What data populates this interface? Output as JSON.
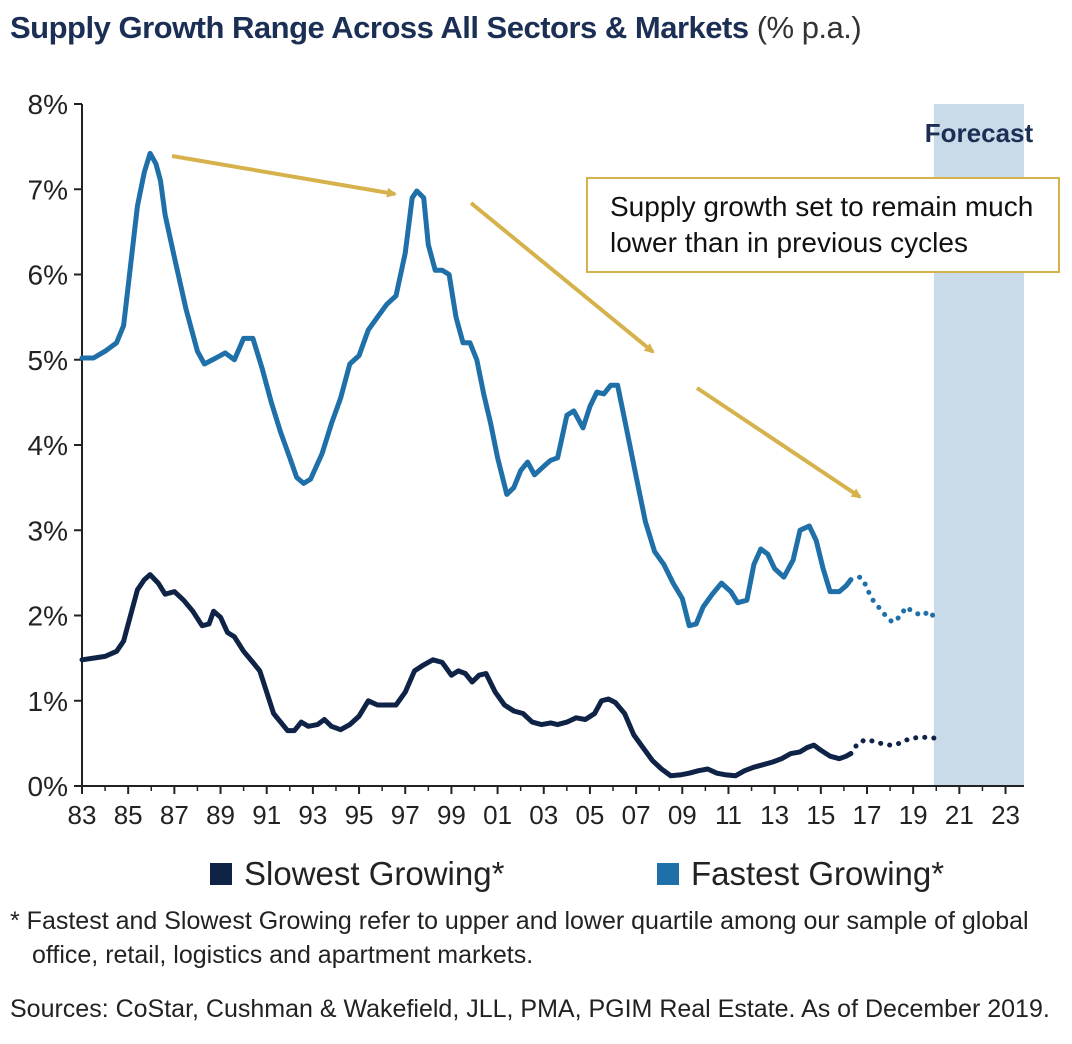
{
  "title": {
    "main": "Supply Growth Range Across All Sectors & Markets",
    "unit": "(% p.a.)"
  },
  "annotation": {
    "forecast_label": "Forecast",
    "callout_line1": "Supply growth set to remain much",
    "callout_line2": "lower than in previous cycles"
  },
  "legend": [
    {
      "label": "Slowest Growing*",
      "color": "#0f2347"
    },
    {
      "label": "Fastest Growing*",
      "color": "#1f6fa8"
    }
  ],
  "footnote": {
    "line1": "* Fastest and Slowest Growing refer to upper and lower quartile among our sample of global",
    "line2": "office, retail, logistics and apartment markets."
  },
  "source": "Sources: CoStar, Cushman & Wakefield, JLL, PMA, PGIM Real Estate. As of December 2019.",
  "colors": {
    "fastest": "#1f6fa8",
    "slowest": "#0f2347",
    "forecast_band": "#c9dbe8",
    "arrow": "#d6b24d",
    "axis": "#222222"
  },
  "chart_data": {
    "type": "line",
    "title": "Supply Growth Range Across All Sectors & Markets (% p.a.)",
    "xlabel": "",
    "ylabel": "",
    "xlim": [
      1983,
      2023.8
    ],
    "ylim": [
      0,
      8
    ],
    "y_ticks": [
      0,
      1,
      2,
      3,
      4,
      5,
      6,
      7,
      8
    ],
    "y_tick_labels": [
      "0%",
      "1%",
      "2%",
      "3%",
      "4%",
      "5%",
      "6%",
      "7%",
      "8%"
    ],
    "x_ticks": [
      1983,
      1985,
      1987,
      1989,
      1991,
      1993,
      1995,
      1997,
      1999,
      2001,
      2003,
      2005,
      2007,
      2009,
      2011,
      2013,
      2015,
      2017,
      2019,
      2021,
      2023
    ],
    "x_tick_labels": [
      "83",
      "85",
      "87",
      "89",
      "91",
      "93",
      "95",
      "97",
      "99",
      "01",
      "03",
      "05",
      "07",
      "09",
      "11",
      "13",
      "15",
      "17",
      "19",
      "21",
      "23"
    ],
    "forecast_range": [
      2019.9,
      2023.8
    ],
    "grid": false,
    "legend_position": "bottom",
    "series": [
      {
        "name": "Fastest Growing*",
        "color": "#1f6fa8",
        "points": [
          [
            1983,
            5.02
          ],
          [
            1983.5,
            5.02
          ],
          [
            1984,
            5.1
          ],
          [
            1984.5,
            5.2
          ],
          [
            1984.8,
            5.4
          ],
          [
            1985.1,
            6.1
          ],
          [
            1985.4,
            6.8
          ],
          [
            1985.7,
            7.2
          ],
          [
            1985.95,
            7.42
          ],
          [
            1986.2,
            7.3
          ],
          [
            1986.4,
            7.1
          ],
          [
            1986.6,
            6.7
          ],
          [
            1987,
            6.2
          ],
          [
            1987.5,
            5.6
          ],
          [
            1988,
            5.1
          ],
          [
            1988.3,
            4.95
          ],
          [
            1988.8,
            5.02
          ],
          [
            1989.2,
            5.08
          ],
          [
            1989.6,
            5.0
          ],
          [
            1990.0,
            5.25
          ],
          [
            1990.4,
            5.25
          ],
          [
            1990.8,
            4.9
          ],
          [
            1991.2,
            4.5
          ],
          [
            1991.6,
            4.15
          ],
          [
            1992.0,
            3.85
          ],
          [
            1992.3,
            3.62
          ],
          [
            1992.6,
            3.55
          ],
          [
            1992.9,
            3.6
          ],
          [
            1993.4,
            3.9
          ],
          [
            1993.8,
            4.25
          ],
          [
            1994.2,
            4.55
          ],
          [
            1994.6,
            4.95
          ],
          [
            1995.0,
            5.05
          ],
          [
            1995.4,
            5.35
          ],
          [
            1995.8,
            5.5
          ],
          [
            1996.2,
            5.65
          ],
          [
            1996.6,
            5.75
          ],
          [
            1997.0,
            6.25
          ],
          [
            1997.3,
            6.9
          ],
          [
            1997.5,
            6.98
          ],
          [
            1997.8,
            6.9
          ],
          [
            1998.0,
            6.35
          ],
          [
            1998.3,
            6.05
          ],
          [
            1998.6,
            6.05
          ],
          [
            1998.9,
            6.0
          ],
          [
            1999.2,
            5.5
          ],
          [
            1999.5,
            5.2
          ],
          [
            1999.8,
            5.2
          ],
          [
            2000.1,
            5.0
          ],
          [
            2000.4,
            4.6
          ],
          [
            2000.7,
            4.25
          ],
          [
            2001.0,
            3.85
          ],
          [
            2001.4,
            3.42
          ],
          [
            2001.7,
            3.5
          ],
          [
            2002.0,
            3.7
          ],
          [
            2002.3,
            3.8
          ],
          [
            2002.6,
            3.65
          ],
          [
            2003.0,
            3.75
          ],
          [
            2003.3,
            3.82
          ],
          [
            2003.6,
            3.85
          ],
          [
            2004.0,
            4.35
          ],
          [
            2004.3,
            4.4
          ],
          [
            2004.7,
            4.2
          ],
          [
            2005.0,
            4.45
          ],
          [
            2005.3,
            4.62
          ],
          [
            2005.6,
            4.6
          ],
          [
            2005.9,
            4.7
          ],
          [
            2006.2,
            4.7
          ],
          [
            2006.5,
            4.3
          ],
          [
            2006.8,
            3.9
          ],
          [
            2007.1,
            3.5
          ],
          [
            2007.4,
            3.1
          ],
          [
            2007.8,
            2.75
          ],
          [
            2008.2,
            2.6
          ],
          [
            2008.6,
            2.38
          ],
          [
            2009.0,
            2.2
          ],
          [
            2009.3,
            1.88
          ],
          [
            2009.6,
            1.9
          ],
          [
            2009.9,
            2.1
          ],
          [
            2010.3,
            2.25
          ],
          [
            2010.7,
            2.38
          ],
          [
            2011.1,
            2.28
          ],
          [
            2011.4,
            2.15
          ],
          [
            2011.8,
            2.18
          ],
          [
            2012.1,
            2.6
          ],
          [
            2012.4,
            2.78
          ],
          [
            2012.7,
            2.72
          ],
          [
            2013.0,
            2.55
          ],
          [
            2013.4,
            2.45
          ],
          [
            2013.8,
            2.65
          ],
          [
            2014.1,
            3.0
          ],
          [
            2014.5,
            3.05
          ],
          [
            2014.8,
            2.88
          ],
          [
            2015.1,
            2.55
          ],
          [
            2015.4,
            2.28
          ],
          [
            2015.8,
            2.28
          ],
          [
            2016.1,
            2.35
          ],
          [
            2016.3,
            2.42
          ]
        ],
        "forecast_points": [
          [
            2016.3,
            2.42
          ],
          [
            2016.7,
            2.45
          ],
          [
            2016.9,
            2.38
          ],
          [
            2017.2,
            2.2
          ],
          [
            2017.5,
            2.1
          ],
          [
            2017.8,
            2.0
          ],
          [
            2018.1,
            1.92
          ],
          [
            2018.4,
            1.98
          ],
          [
            2018.7,
            2.1
          ],
          [
            2019.0,
            2.04
          ],
          [
            2019.4,
            2.0
          ],
          [
            2019.7,
            2.05
          ],
          [
            2020.0,
            1.95
          ]
        ]
      },
      {
        "name": "Slowest Growing*",
        "color": "#0f2347",
        "points": [
          [
            1983,
            1.48
          ],
          [
            1983.5,
            1.5
          ],
          [
            1984,
            1.52
          ],
          [
            1984.5,
            1.58
          ],
          [
            1984.8,
            1.7
          ],
          [
            1985.1,
            2.0
          ],
          [
            1985.4,
            2.3
          ],
          [
            1985.7,
            2.42
          ],
          [
            1985.95,
            2.48
          ],
          [
            1986.3,
            2.38
          ],
          [
            1986.6,
            2.25
          ],
          [
            1987.0,
            2.28
          ],
          [
            1987.4,
            2.18
          ],
          [
            1987.8,
            2.05
          ],
          [
            1988.2,
            1.88
          ],
          [
            1988.5,
            1.9
          ],
          [
            1988.7,
            2.05
          ],
          [
            1989.0,
            1.98
          ],
          [
            1989.3,
            1.8
          ],
          [
            1989.6,
            1.75
          ],
          [
            1990.0,
            1.58
          ],
          [
            1990.4,
            1.45
          ],
          [
            1990.7,
            1.35
          ],
          [
            1991.0,
            1.1
          ],
          [
            1991.3,
            0.85
          ],
          [
            1991.6,
            0.75
          ],
          [
            1991.9,
            0.65
          ],
          [
            1992.2,
            0.65
          ],
          [
            1992.5,
            0.75
          ],
          [
            1992.8,
            0.7
          ],
          [
            1993.2,
            0.72
          ],
          [
            1993.5,
            0.78
          ],
          [
            1993.8,
            0.7
          ],
          [
            1994.2,
            0.66
          ],
          [
            1994.6,
            0.72
          ],
          [
            1995.0,
            0.82
          ],
          [
            1995.4,
            1.0
          ],
          [
            1995.8,
            0.95
          ],
          [
            1996.2,
            0.95
          ],
          [
            1996.6,
            0.95
          ],
          [
            1997.0,
            1.1
          ],
          [
            1997.4,
            1.35
          ],
          [
            1997.8,
            1.42
          ],
          [
            1998.2,
            1.48
          ],
          [
            1998.6,
            1.45
          ],
          [
            1999.0,
            1.3
          ],
          [
            1999.3,
            1.35
          ],
          [
            1999.6,
            1.32
          ],
          [
            1999.9,
            1.22
          ],
          [
            2000.2,
            1.3
          ],
          [
            2000.5,
            1.32
          ],
          [
            2000.9,
            1.1
          ],
          [
            2001.3,
            0.95
          ],
          [
            2001.7,
            0.88
          ],
          [
            2002.1,
            0.85
          ],
          [
            2002.5,
            0.75
          ],
          [
            2002.9,
            0.72
          ],
          [
            2003.3,
            0.74
          ],
          [
            2003.6,
            0.72
          ],
          [
            2004.0,
            0.75
          ],
          [
            2004.4,
            0.8
          ],
          [
            2004.8,
            0.78
          ],
          [
            2005.2,
            0.85
          ],
          [
            2005.5,
            1.0
          ],
          [
            2005.8,
            1.02
          ],
          [
            2006.1,
            0.98
          ],
          [
            2006.5,
            0.85
          ],
          [
            2006.9,
            0.6
          ],
          [
            2007.3,
            0.45
          ],
          [
            2007.7,
            0.3
          ],
          [
            2008.1,
            0.2
          ],
          [
            2008.5,
            0.12
          ],
          [
            2008.9,
            0.13
          ],
          [
            2009.3,
            0.15
          ],
          [
            2009.7,
            0.18
          ],
          [
            2010.1,
            0.2
          ],
          [
            2010.5,
            0.15
          ],
          [
            2010.9,
            0.13
          ],
          [
            2011.3,
            0.12
          ],
          [
            2011.7,
            0.18
          ],
          [
            2012.1,
            0.22
          ],
          [
            2012.5,
            0.25
          ],
          [
            2012.9,
            0.28
          ],
          [
            2013.3,
            0.32
          ],
          [
            2013.7,
            0.38
          ],
          [
            2014.1,
            0.4
          ],
          [
            2014.4,
            0.45
          ],
          [
            2014.7,
            0.48
          ],
          [
            2015.0,
            0.42
          ],
          [
            2015.4,
            0.35
          ],
          [
            2015.8,
            0.32
          ],
          [
            2016.1,
            0.35
          ],
          [
            2016.3,
            0.38
          ]
        ],
        "forecast_points": [
          [
            2016.3,
            0.38
          ],
          [
            2016.6,
            0.5
          ],
          [
            2016.9,
            0.54
          ],
          [
            2017.2,
            0.53
          ],
          [
            2017.6,
            0.5
          ],
          [
            2018.0,
            0.48
          ],
          [
            2018.4,
            0.5
          ],
          [
            2018.8,
            0.55
          ],
          [
            2019.2,
            0.57
          ],
          [
            2019.6,
            0.57
          ],
          [
            2020.0,
            0.56
          ]
        ]
      }
    ]
  }
}
